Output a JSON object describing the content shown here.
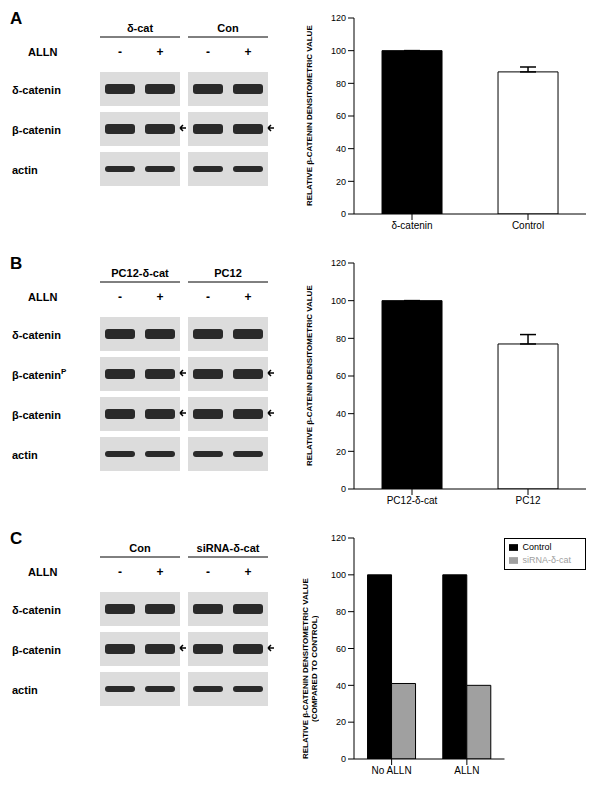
{
  "panel_labels": [
    "A",
    "B",
    "C"
  ],
  "blots": [
    {
      "treatment": "ALLN",
      "groups": [
        {
          "name": "δ-cat",
          "lanes": [
            "-",
            "+"
          ]
        },
        {
          "name": "Con",
          "lanes": [
            "-",
            "+"
          ]
        }
      ],
      "rows": [
        {
          "text": "δ-catenin"
        },
        {
          "text": "β-catenin"
        },
        {
          "text": "actin"
        }
      ]
    },
    {
      "treatment": "ALLN",
      "groups": [
        {
          "name": "PC12-δ-cat",
          "lanes": [
            "-",
            "+"
          ]
        },
        {
          "name": "PC12",
          "lanes": [
            "-",
            "+"
          ]
        }
      ],
      "rows": [
        {
          "text": "δ-catenin"
        },
        {
          "text": "β-catenin",
          "superscript": "P"
        },
        {
          "text": "β-catenin"
        },
        {
          "text": "actin"
        }
      ]
    },
    {
      "treatment": "ALLN",
      "groups": [
        {
          "name": "Con",
          "lanes": [
            "-",
            "+"
          ]
        },
        {
          "name": "siRNA-δ-cat",
          "lanes": [
            "-",
            "+"
          ]
        }
      ],
      "rows": [
        {
          "text": "δ-catenin"
        },
        {
          "text": "β-catenin"
        },
        {
          "text": "actin"
        }
      ]
    }
  ],
  "chart_data": [
    {
      "type": "bar",
      "ylabel": "RELATIVE β-CATENIN DENSITOMETRIC VALUE",
      "categories": [
        "δ-catenin",
        "Control"
      ],
      "values": [
        100,
        87
      ],
      "errors": [
        0,
        3
      ],
      "colors": [
        "#000000",
        "#ffffff"
      ],
      "ylim": [
        0,
        120
      ],
      "yticks": [
        0,
        20,
        40,
        60,
        80,
        100,
        120
      ],
      "grid": false
    },
    {
      "type": "bar",
      "ylabel": "RELATIVE β-CATENIN DENSITOMETRIC VALUE",
      "categories": [
        "PC12-δ-cat",
        "PC12"
      ],
      "values": [
        100,
        77
      ],
      "errors": [
        0,
        5
      ],
      "colors": [
        "#000000",
        "#ffffff"
      ],
      "ylim": [
        0,
        120
      ],
      "yticks": [
        0,
        20,
        40,
        60,
        80,
        100,
        120
      ],
      "grid": false
    },
    {
      "type": "bar",
      "ylabel": "RELATIVE β-CATENIN DENSITOMETRIC VALUE (COMPARED TO CONTROL)",
      "categories": [
        "No ALLN",
        "ALLN"
      ],
      "series": [
        {
          "name": "Control",
          "color": "#000000",
          "values": [
            100,
            100
          ]
        },
        {
          "name": "siRNA-δ-cat",
          "color": "#a0a0a0",
          "values": [
            41,
            40
          ]
        }
      ],
      "ylim": [
        0,
        120
      ],
      "yticks": [
        0,
        20,
        40,
        60,
        80,
        100,
        120
      ],
      "grid": false,
      "legend": "upper right"
    }
  ]
}
